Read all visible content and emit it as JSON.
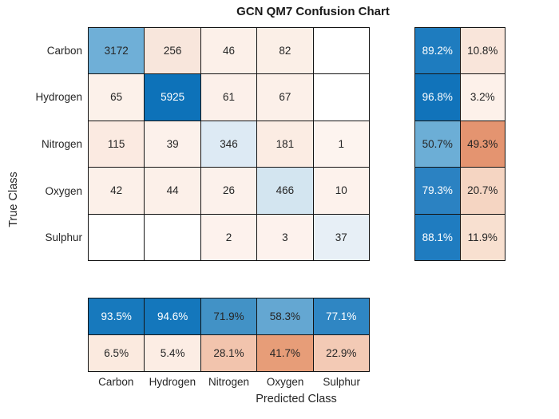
{
  "chart_data": {
    "type": "heatmap",
    "subtype": "confusion-matrix",
    "title": "GCN QM7 Confusion Chart",
    "xlabel": "Predicted Class",
    "ylabel": "True Class",
    "classes": [
      "Carbon",
      "Hydrogen",
      "Nitrogen",
      "Oxygen",
      "Sulphur"
    ],
    "matrix": {
      "counts": [
        [
          "3172",
          "256",
          "46",
          "82",
          ""
        ],
        [
          "65",
          "5925",
          "61",
          "67",
          ""
        ],
        [
          "115",
          "39",
          "346",
          "181",
          "1"
        ],
        [
          "42",
          "44",
          "26",
          "466",
          "10"
        ],
        [
          "",
          "",
          "2",
          "3",
          "37"
        ]
      ],
      "bg": [
        [
          "#6fafd7",
          "#f8e6dc",
          "#fcf0e9",
          "#fbefe7",
          "#ffffff"
        ],
        [
          "#fcf1ea",
          "#0d72b9",
          "#fcf0ea",
          "#fcf0e9",
          "#ffffff"
        ],
        [
          "#fbeae1",
          "#fcf1eb",
          "#ddeaf4",
          "#fbece3",
          "#fdf4ef"
        ],
        [
          "#fcf0e9",
          "#fcf0e9",
          "#fcf1eb",
          "#d3e5f0",
          "#fdf2ec"
        ],
        [
          "#ffffff",
          "#ffffff",
          "#fdf2ed",
          "#fdf2ed",
          "#e7eff6"
        ]
      ],
      "fg": [
        [
          "d",
          "d",
          "d",
          "d",
          "d"
        ],
        [
          "d",
          "w",
          "d",
          "d",
          "d"
        ],
        [
          "d",
          "d",
          "d",
          "d",
          "d"
        ],
        [
          "d",
          "d",
          "d",
          "d",
          "d"
        ],
        [
          "d",
          "d",
          "d",
          "d",
          "d"
        ]
      ]
    },
    "row_summary": {
      "description": "per-true-class recall (left) and miss rate (right)",
      "labels": [
        [
          "89.2%",
          "10.8%"
        ],
        [
          "96.8%",
          "3.2%"
        ],
        [
          "50.7%",
          "49.3%"
        ],
        [
          "79.3%",
          "20.7%"
        ],
        [
          "88.1%",
          "11.9%"
        ]
      ],
      "bg": [
        [
          "#1e7cbf",
          "#f9e5da"
        ],
        [
          "#1173ba",
          "#fdf1ea"
        ],
        [
          "#6caed6",
          "#e49470"
        ],
        [
          "#2b82c2",
          "#f5d5c2"
        ],
        [
          "#1f7cc0",
          "#f8e0d0"
        ]
      ],
      "fg": [
        [
          "w",
          "d"
        ],
        [
          "w",
          "d"
        ],
        [
          "d",
          "d"
        ],
        [
          "w",
          "d"
        ],
        [
          "w",
          "d"
        ]
      ]
    },
    "col_summary": {
      "description": "per-predicted-class precision (top) and false discovery rate (bottom)",
      "labels": [
        [
          "93.5%",
          "94.6%",
          "71.9%",
          "58.3%",
          "77.1%"
        ],
        [
          "6.5%",
          "5.4%",
          "28.1%",
          "41.7%",
          "22.9%"
        ]
      ],
      "bg": [
        [
          "#1779bd",
          "#1477bc",
          "#4292c6",
          "#64a7d2",
          "#2f86c3"
        ],
        [
          "#fbeadf",
          "#fcede4",
          "#f2c4ad",
          "#e79d78",
          "#f3cab5"
        ]
      ],
      "fg": [
        [
          "w",
          "w",
          "d",
          "d",
          "w"
        ],
        [
          "d",
          "d",
          "d",
          "d",
          "d"
        ]
      ]
    },
    "colors": {
      "diagonal_accent": "#0072bd",
      "off_diagonal_accent": "#d95319",
      "grid_line": "#141414",
      "text_dark": "#262626",
      "text_light": "#ffffff"
    },
    "layout": {
      "legend": "none",
      "grid": "cell-borders",
      "row_summary_position": "right",
      "col_summary_position": "bottom"
    }
  }
}
